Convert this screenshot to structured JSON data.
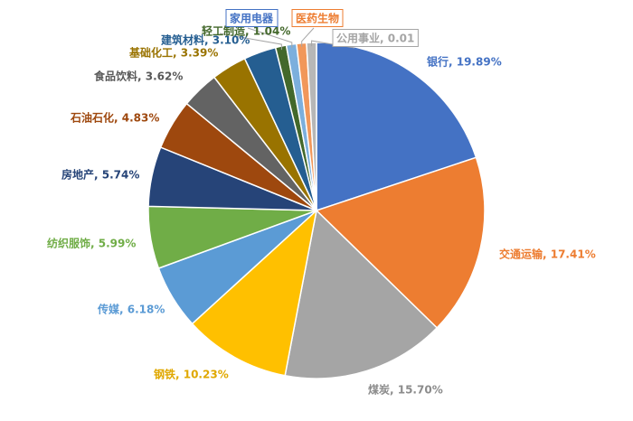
{
  "chart_data": {
    "type": "pie",
    "start_angle_deg": 0,
    "direction": "clockwise",
    "slices": [
      {
        "name": "银行",
        "value": 19.89,
        "label": "银行, 19.89%",
        "color": "#4472C4",
        "label_color": "#4472C4"
      },
      {
        "name": "交通运输",
        "value": 17.41,
        "label": "交通运输, 17.41%",
        "color": "#ED7D31",
        "label_color": "#ED7D31"
      },
      {
        "name": "煤炭",
        "value": 15.7,
        "label": "煤炭, 15.70%",
        "color": "#A5A5A5",
        "label_color": "#8C8C8C"
      },
      {
        "name": "钢铁",
        "value": 10.23,
        "label": "钢铁, 10.23%",
        "color": "#FFC000",
        "label_color": "#E0A800"
      },
      {
        "name": "传媒",
        "value": 6.18,
        "label": "传媒, 6.18%",
        "color": "#5B9BD5",
        "label_color": "#5B9BD5"
      },
      {
        "name": "纺织服饰",
        "value": 5.99,
        "label": "纺织服饰, 5.99%",
        "color": "#70AD47",
        "label_color": "#70AD47"
      },
      {
        "name": "房地产",
        "value": 5.74,
        "label": "房地产, 5.74%",
        "color": "#264478",
        "label_color": "#264478"
      },
      {
        "name": "石油石化",
        "value": 4.83,
        "label": "石油石化, 4.83%",
        "color": "#9E480E",
        "label_color": "#9E480E"
      },
      {
        "name": "食品饮料",
        "value": 3.62,
        "label": "食品饮料, 3.62%",
        "color": "#636363",
        "label_color": "#595959"
      },
      {
        "name": "基础化工",
        "value": 3.39,
        "label": "基础化工, 3.39%",
        "color": "#997300",
        "label_color": "#997300"
      },
      {
        "name": "建筑材料",
        "value": 3.1,
        "label": "建筑材料, 3.10%",
        "color": "#255E91",
        "label_color": "#255E91"
      },
      {
        "name": "轻工制造",
        "value": 1.04,
        "label": "轻工制造, 1.04%",
        "color": "#43682B",
        "label_color": "#43682B"
      },
      {
        "name": "家用电器",
        "value": 0.98,
        "label": "家用电器",
        "color": "#7CAFDD",
        "label_color": "#4472C4"
      },
      {
        "name": "医药生物",
        "value": 0.95,
        "label": "医药生物",
        "color": "#F1975A",
        "label_color": "#ED7D31"
      },
      {
        "name": "公用事业",
        "value": 0.95,
        "label": "公用事业, 0.01",
        "color": "#B7B7B7",
        "label_color": "#A5A5A5"
      }
    ]
  }
}
